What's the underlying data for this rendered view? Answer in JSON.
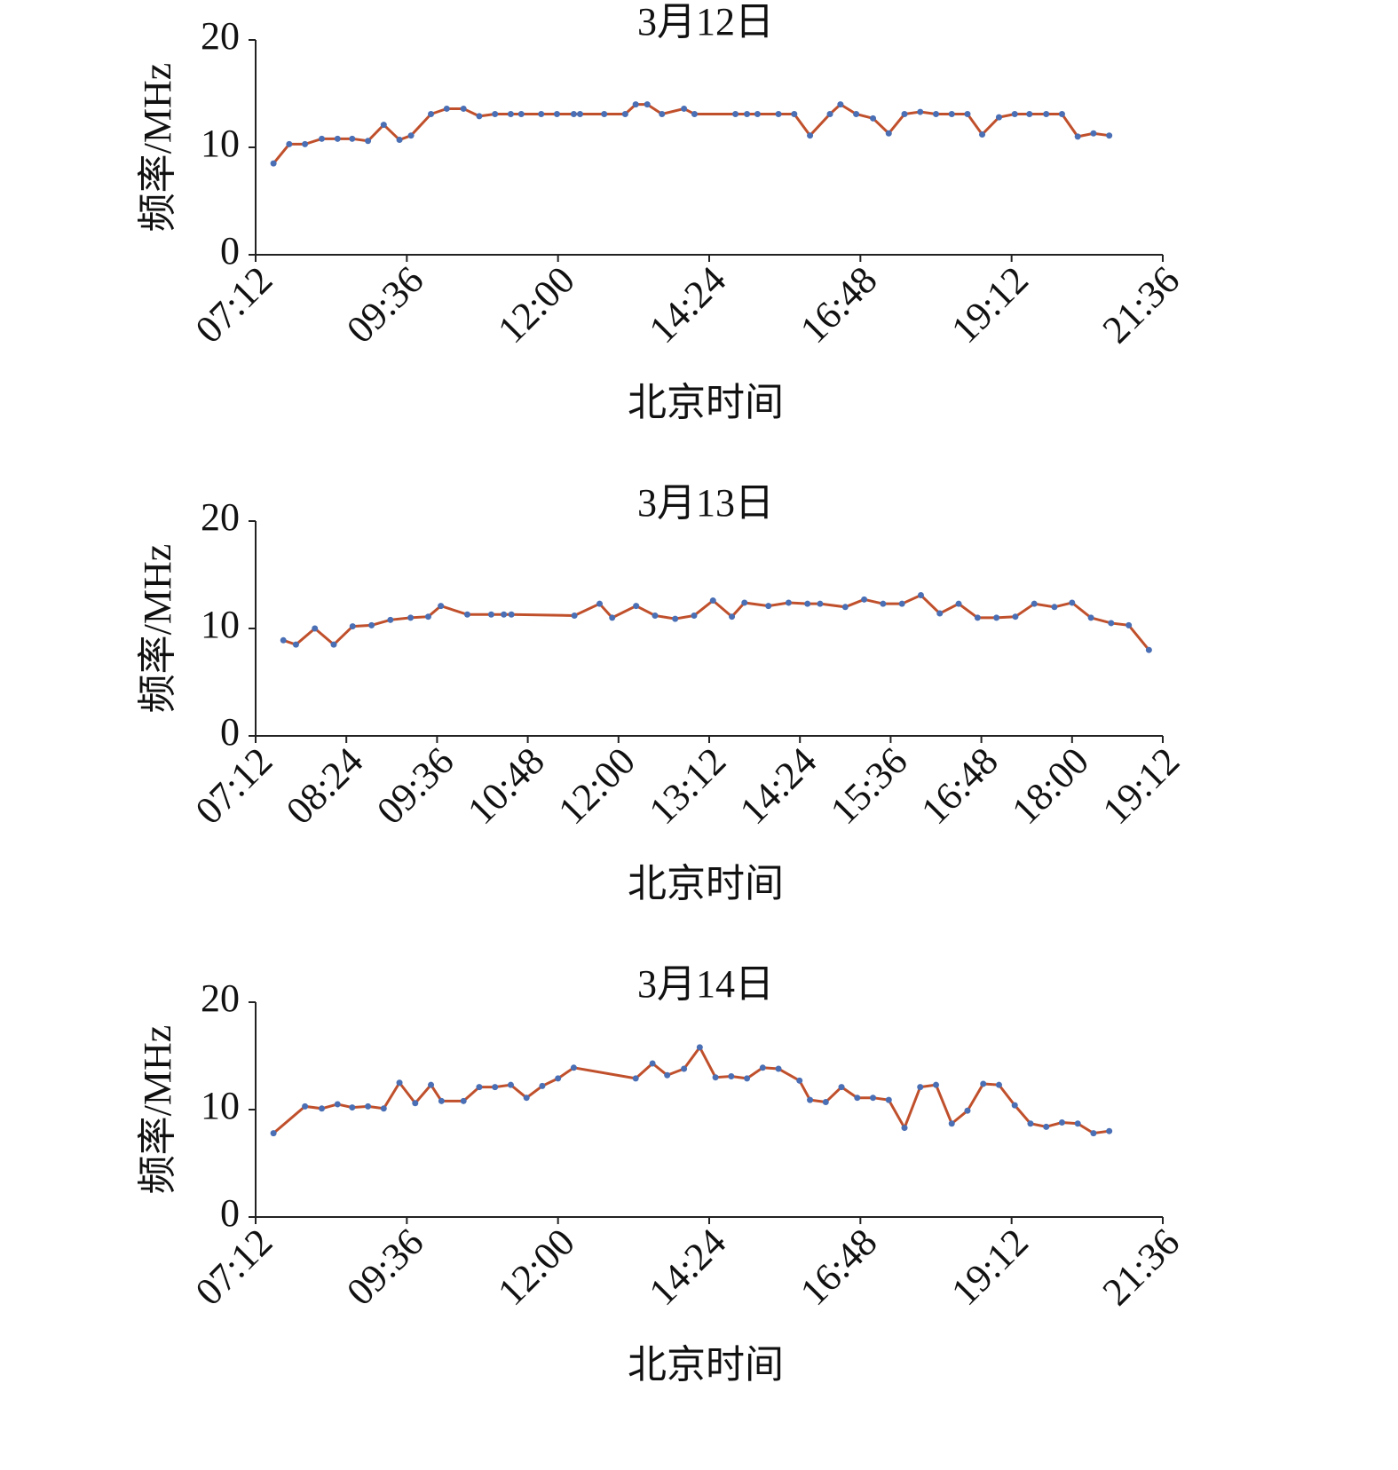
{
  "chart_data": [
    {
      "type": "line",
      "title": "3月12日",
      "y_label": "频率/MHz",
      "x_label": "北京时间",
      "xlim": [
        "07:12",
        "21:36"
      ],
      "xticks": [
        "07:12",
        "09:36",
        "12:00",
        "14:24",
        "16:48",
        "19:12",
        "21:36"
      ],
      "ylim": [
        0,
        20
      ],
      "yticks": [
        0,
        10,
        20
      ],
      "series": [
        {
          "color": "#c0502c",
          "marker_color": "#4a6fb5",
          "x": [
            "07:29",
            "07:44",
            "07:59",
            "08:15",
            "08:30",
            "08:44",
            "08:59",
            "09:14",
            "09:29",
            "09:40",
            "09:59",
            "10:14",
            "10:30",
            "10:45",
            "11:00",
            "11:15",
            "11:25",
            "11:44",
            "11:59",
            "12:15",
            "12:21",
            "12:44",
            "13:04",
            "13:14",
            "13:25",
            "13:39",
            "14:00",
            "14:10",
            "14:49",
            "15:00",
            "15:10",
            "15:30",
            "15:45",
            "16:00",
            "16:19",
            "16:29",
            "16:44",
            "17:00",
            "17:15",
            "17:30",
            "17:45",
            "18:00",
            "18:15",
            "18:30",
            "18:44",
            "19:00",
            "19:15",
            "19:29",
            "19:45",
            "20:00",
            "20:15",
            "20:30",
            "20:45"
          ],
          "values": [
            8.5,
            10.3,
            10.3,
            10.8,
            10.8,
            10.8,
            10.6,
            12.1,
            10.7,
            11.1,
            13.1,
            13.6,
            13.6,
            12.9,
            13.1,
            13.1,
            13.1,
            13.1,
            13.1,
            13.1,
            13.1,
            13.1,
            13.1,
            14.0,
            14.0,
            13.1,
            13.6,
            13.1,
            13.1,
            13.1,
            13.1,
            13.1,
            13.1,
            11.1,
            13.1,
            14.0,
            13.1,
            12.7,
            11.3,
            13.1,
            13.3,
            13.1,
            13.1,
            13.1,
            11.2,
            12.8,
            13.1,
            13.1,
            13.1,
            13.1,
            11.0,
            11.3,
            11.1
          ]
        }
      ]
    },
    {
      "type": "line",
      "title": "3月13日",
      "y_label": "频率/MHz",
      "x_label": "北京时间",
      "xlim": [
        "07:12",
        "19:12"
      ],
      "xticks": [
        "07:12",
        "08:24",
        "09:36",
        "10:48",
        "12:00",
        "13:12",
        "14:24",
        "15:36",
        "16:48",
        "18:00",
        "19:12"
      ],
      "ylim": [
        0,
        20
      ],
      "yticks": [
        0,
        10,
        20
      ],
      "series": [
        {
          "color": "#c0502c",
          "marker_color": "#4a6fb5",
          "x": [
            "07:34",
            "07:44",
            "07:59",
            "08:14",
            "08:29",
            "08:44",
            "08:59",
            "09:15",
            "09:29",
            "09:39",
            "10:00",
            "10:19",
            "10:29",
            "10:35",
            "11:25",
            "11:45",
            "11:55",
            "12:14",
            "12:29",
            "12:45",
            "13:00",
            "13:15",
            "13:30",
            "13:40",
            "13:59",
            "14:15",
            "14:30",
            "14:40",
            "15:00",
            "15:15",
            "15:30",
            "15:45",
            "16:00",
            "16:15",
            "16:30",
            "16:45",
            "17:00",
            "17:15",
            "17:30",
            "17:46",
            "18:00",
            "18:15",
            "18:31",
            "18:45",
            "19:01"
          ],
          "values": [
            8.9,
            8.5,
            10.0,
            8.5,
            10.2,
            10.3,
            10.8,
            11.0,
            11.1,
            12.1,
            11.3,
            11.3,
            11.3,
            11.3,
            11.2,
            12.3,
            11.0,
            12.1,
            11.2,
            10.9,
            11.2,
            12.6,
            11.1,
            12.4,
            12.1,
            12.4,
            12.3,
            12.3,
            12.0,
            12.7,
            12.3,
            12.3,
            13.1,
            11.4,
            12.3,
            11.0,
            11.0,
            11.1,
            12.3,
            12.0,
            12.4,
            11.0,
            10.5,
            10.3,
            8.0
          ]
        }
      ]
    },
    {
      "type": "line",
      "title": "3月14日",
      "y_label": "频率/MHz",
      "x_label": "北京时间",
      "xlim": [
        "07:12",
        "21:36"
      ],
      "xticks": [
        "07:12",
        "09:36",
        "12:00",
        "14:24",
        "16:48",
        "19:12",
        "21:36"
      ],
      "ylim": [
        0,
        20
      ],
      "yticks": [
        0,
        10,
        20
      ],
      "series": [
        {
          "color": "#c0502c",
          "marker_color": "#4a6fb5",
          "x": [
            "07:29",
            "07:59",
            "08:15",
            "08:30",
            "08:44",
            "08:59",
            "09:14",
            "09:29",
            "09:44",
            "09:59",
            "10:09",
            "10:30",
            "10:45",
            "11:00",
            "11:15",
            "11:30",
            "11:45",
            "12:00",
            "12:15",
            "13:14",
            "13:30",
            "13:44",
            "14:00",
            "14:15",
            "14:30",
            "14:45",
            "15:00",
            "15:15",
            "15:30",
            "15:50",
            "16:00",
            "16:15",
            "16:30",
            "16:45",
            "17:00",
            "17:15",
            "17:30",
            "17:45",
            "18:00",
            "18:15",
            "18:30",
            "18:45",
            "19:00",
            "19:15",
            "19:30",
            "19:45",
            "20:00",
            "20:15",
            "20:30",
            "20:45"
          ],
          "values": [
            7.8,
            10.3,
            10.1,
            10.5,
            10.2,
            10.3,
            10.1,
            12.5,
            10.6,
            12.3,
            10.8,
            10.8,
            12.1,
            12.1,
            12.3,
            11.1,
            12.2,
            12.9,
            13.9,
            12.9,
            14.3,
            13.2,
            13.8,
            15.8,
            13.0,
            13.1,
            12.9,
            13.9,
            13.8,
            12.7,
            10.9,
            10.7,
            12.1,
            11.1,
            11.1,
            10.9,
            8.3,
            12.1,
            12.3,
            8.7,
            9.9,
            12.4,
            12.3,
            10.4,
            8.7,
            8.4,
            8.8,
            8.7,
            7.8,
            8.0
          ]
        }
      ]
    }
  ]
}
